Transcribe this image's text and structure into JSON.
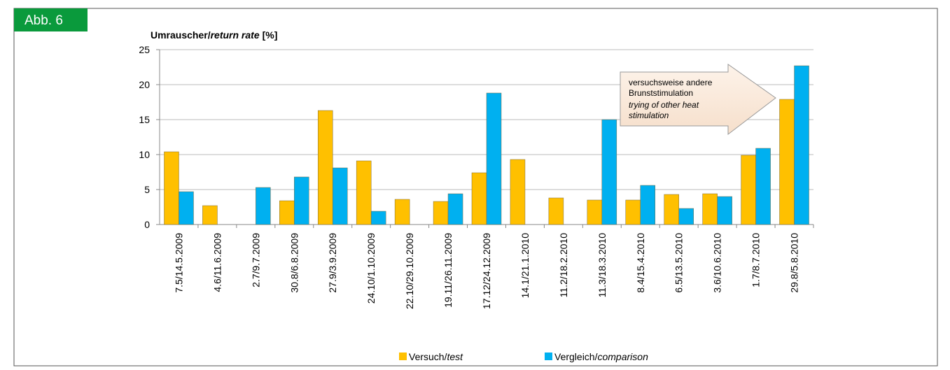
{
  "figure_label": "Abb. 6",
  "chart_data": {
    "type": "bar",
    "title_parts": [
      "Umrauscher/",
      "return rate",
      "[%]"
    ],
    "categories": [
      "7.5/14.5.2009",
      "4.6/11.6.2009",
      "2.7/9.7.2009",
      "30.8/6.8.2009",
      "27.9/3.9.2009",
      "24.10/1.10.2009",
      "22.10/29.10.2009",
      "19.11/26.11.2009",
      "17.12/24.12.2009",
      "14.1/21.1.2010",
      "11.2/18.2.2010",
      "11.3/18.3.2010",
      "8.4/15.4.2010",
      "6.5/13.5.2010",
      "3.6/10.6.2010",
      "1.7/8.7.2010",
      "29.8/5.8.2010"
    ],
    "series": [
      {
        "name": "Versuch/test",
        "color": "#ffc000",
        "values": [
          10.4,
          2.7,
          null,
          3.4,
          16.3,
          9.1,
          3.6,
          3.3,
          7.4,
          9.3,
          3.8,
          3.5,
          3.5,
          4.3,
          4.4,
          9.9,
          17.9
        ]
      },
      {
        "name": "Vergleich/comparison",
        "color": "#00b0f0",
        "values": [
          4.7,
          null,
          5.3,
          6.8,
          8.1,
          1.9,
          null,
          4.4,
          18.8,
          null,
          null,
          15.0,
          5.6,
          2.3,
          4.0,
          10.9,
          22.7
        ]
      }
    ],
    "ylim": [
      0,
      25
    ],
    "yticks": [
      0,
      5,
      10,
      15,
      20,
      25
    ],
    "grid": true,
    "annotation": [
      "versuchsweise andere",
      "Brunststimulation",
      "trying of other heat",
      "stimulation"
    ]
  }
}
